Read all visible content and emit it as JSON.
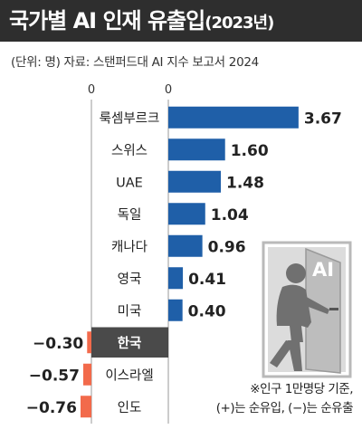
{
  "title": "국가별 AI 인재 유출입",
  "title_year": "(2023년)",
  "source": "(단위: 명) 자료: 스탠퍼드대 AI 지수 보고서 2024",
  "footnote_line1": "※인구 1만명당 기준,",
  "footnote_line2": "(+)는 순유입, (−)는 순유출",
  "illustration_text": "AI",
  "axis_zero_label": "0",
  "colors": {
    "positive": "#1f5fa8",
    "negative": "#f26a4b",
    "highlight_band": "#4a4a4a",
    "title_bg": "#2e2e2e"
  },
  "chart_data": {
    "type": "bar",
    "orientation": "horizontal",
    "categories": [
      "룩셈부르크",
      "스위스",
      "UAE",
      "독일",
      "캐나다",
      "영국",
      "미국",
      "한국",
      "이스라엘",
      "인도"
    ],
    "values": [
      3.67,
      1.6,
      1.48,
      1.04,
      0.96,
      0.41,
      0.4,
      -0.3,
      -0.57,
      -0.76
    ],
    "value_labels": [
      "3.67",
      "1.60",
      "1.48",
      "1.04",
      "0.96",
      "0.41",
      "0.40",
      "−0.30",
      "−0.57",
      "−0.76"
    ],
    "highlight": "한국",
    "xlim": [
      -0.76,
      3.67
    ]
  }
}
